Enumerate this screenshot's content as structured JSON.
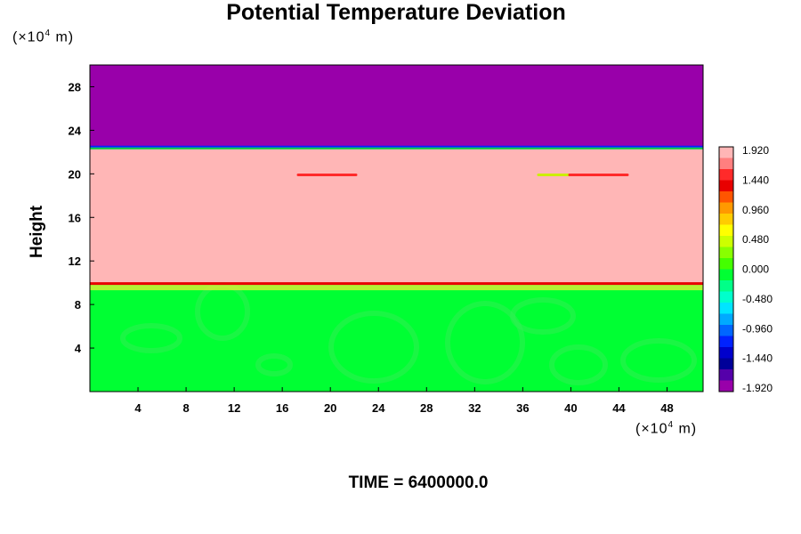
{
  "chart_data": {
    "type": "heatmap",
    "title": "Potential Temperature Deviation",
    "xlabel": "",
    "ylabel": "Height",
    "x_unit": "(×10",
    "x_unit_exp": "4",
    "x_unit_tail": " m)",
    "y_unit": "(×10",
    "y_unit_exp": "4",
    "y_unit_tail": " m)",
    "xlim": [
      0,
      51
    ],
    "ylim": [
      0,
      30
    ],
    "x_ticks": [
      4,
      8,
      12,
      16,
      20,
      24,
      28,
      32,
      36,
      40,
      44,
      48
    ],
    "y_ticks": [
      4,
      8,
      12,
      16,
      20,
      24,
      28
    ],
    "colorbar": {
      "ticks": [
        "1.920",
        "1.440",
        "0.960",
        "0.480",
        "0.000",
        "-0.480",
        "-0.960",
        "-1.440",
        "-1.920"
      ],
      "colors": [
        "#ffb6b6",
        "#ff7f7f",
        "#ff2a2a",
        "#e80000",
        "#ff5500",
        "#ff9900",
        "#ffcc00",
        "#ffff00",
        "#ccff00",
        "#88ff00",
        "#44ff00",
        "#00ff33",
        "#00ff88",
        "#00ffcc",
        "#00e5ff",
        "#00aaff",
        "#0066ff",
        "#0022ff",
        "#0000cc",
        "#000099",
        "#5500aa",
        "#9900aa"
      ]
    },
    "layers": [
      {
        "name": "upper",
        "y_from": 22.5,
        "y_to": 30,
        "color": "#9900aa"
      },
      {
        "name": "middle",
        "y_from": 9.8,
        "y_to": 22.5,
        "color": "#ffb6b6"
      },
      {
        "name": "lower",
        "y_from": 0,
        "y_to": 9.8,
        "color": "#00ff33"
      }
    ],
    "boundaries": [
      {
        "y": 22.5,
        "color": "#00cc44"
      },
      {
        "y": 9.8,
        "color": "#ff2a2a"
      }
    ],
    "grid": false
  },
  "footer": {
    "time_label": "TIME = 6400000.0"
  }
}
